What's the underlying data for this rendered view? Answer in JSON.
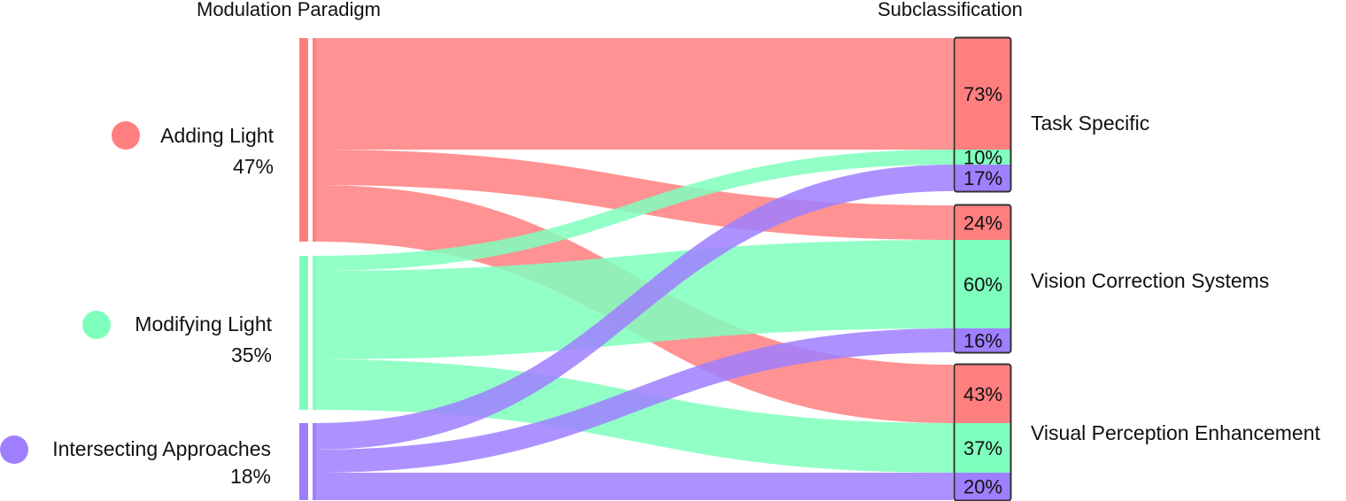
{
  "headers": {
    "left": "Modulation Paradigm",
    "right": "Subclassification"
  },
  "colors": {
    "adding": "#ff7f7f",
    "modifying": "#7fffbd",
    "intersecting": "#9f7fff"
  },
  "sources": [
    {
      "key": "adding",
      "label": "Adding Light",
      "pct": "47%"
    },
    {
      "key": "modifying",
      "label": "Modifying Light",
      "pct": "35%"
    },
    {
      "key": "intersecting",
      "label": "Intersecting Approaches",
      "pct": "18%"
    }
  ],
  "targets": [
    {
      "key": "task",
      "label": "Task Specific",
      "segments": [
        {
          "source": "adding",
          "pct": "73%"
        },
        {
          "source": "modifying",
          "pct": "10%"
        },
        {
          "source": "intersecting",
          "pct": "17%"
        }
      ]
    },
    {
      "key": "vcs",
      "label": "Vision Correction Systems",
      "segments": [
        {
          "source": "adding",
          "pct": "24%"
        },
        {
          "source": "modifying",
          "pct": "60%"
        },
        {
          "source": "intersecting",
          "pct": "16%"
        }
      ]
    },
    {
      "key": "vpe",
      "label": "Visual Perception Enhancement",
      "segments": [
        {
          "source": "adding",
          "pct": "43%"
        },
        {
          "source": "modifying",
          "pct": "37%"
        },
        {
          "source": "intersecting",
          "pct": "20%"
        }
      ]
    }
  ]
}
